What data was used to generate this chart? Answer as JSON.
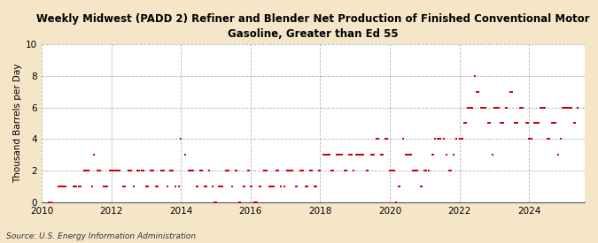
{
  "title": "Weekly Midwest (PADD 2) Refiner and Blender Net Production of Finished Conventional Motor\nGasoline, Greater than Ed 55",
  "ylabel": "Thousand Barrels per Day",
  "source": "Source: U.S. Energy Information Administration",
  "background_color": "#f5e6c8",
  "plot_bg_color": "#ffffff",
  "dot_color": "#cc0000",
  "ylim": [
    0,
    10
  ],
  "yticks": [
    0,
    2,
    4,
    6,
    8,
    10
  ],
  "xlim": [
    2010.0,
    2025.6
  ],
  "xticks": [
    2010,
    2012,
    2014,
    2016,
    2018,
    2020,
    2022,
    2024
  ],
  "data_points": [
    [
      2010.19,
      0
    ],
    [
      2010.27,
      0
    ],
    [
      2010.48,
      1
    ],
    [
      2010.52,
      1
    ],
    [
      2010.56,
      1
    ],
    [
      2010.6,
      1
    ],
    [
      2010.65,
      1
    ],
    [
      2010.69,
      1
    ],
    [
      2010.9,
      1
    ],
    [
      2010.94,
      1
    ],
    [
      2011.0,
      1
    ],
    [
      2011.06,
      1
    ],
    [
      2011.12,
      1
    ],
    [
      2011.23,
      2
    ],
    [
      2011.27,
      2
    ],
    [
      2011.31,
      2
    ],
    [
      2011.35,
      2
    ],
    [
      2011.44,
      1
    ],
    [
      2011.5,
      3
    ],
    [
      2011.6,
      2
    ],
    [
      2011.64,
      2
    ],
    [
      2011.68,
      2
    ],
    [
      2011.79,
      1
    ],
    [
      2011.83,
      1
    ],
    [
      2011.87,
      1
    ],
    [
      2011.95,
      2
    ],
    [
      2011.99,
      2
    ],
    [
      2012.0,
      2
    ],
    [
      2012.04,
      2
    ],
    [
      2012.08,
      2
    ],
    [
      2012.12,
      2
    ],
    [
      2012.16,
      2
    ],
    [
      2012.2,
      2
    ],
    [
      2012.24,
      2
    ],
    [
      2012.35,
      1
    ],
    [
      2012.39,
      1
    ],
    [
      2012.48,
      2
    ],
    [
      2012.52,
      2
    ],
    [
      2012.56,
      2
    ],
    [
      2012.65,
      1
    ],
    [
      2012.75,
      2
    ],
    [
      2012.79,
      2
    ],
    [
      2012.88,
      2
    ],
    [
      2012.92,
      2
    ],
    [
      2013.0,
      1
    ],
    [
      2013.04,
      1
    ],
    [
      2013.12,
      2
    ],
    [
      2013.16,
      2
    ],
    [
      2013.2,
      2
    ],
    [
      2013.29,
      1
    ],
    [
      2013.33,
      1
    ],
    [
      2013.44,
      2
    ],
    [
      2013.48,
      2
    ],
    [
      2013.52,
      2
    ],
    [
      2013.6,
      1
    ],
    [
      2013.69,
      2
    ],
    [
      2013.73,
      2
    ],
    [
      2013.77,
      2
    ],
    [
      2013.85,
      1
    ],
    [
      2013.94,
      1
    ],
    [
      2014.0,
      4
    ],
    [
      2014.12,
      3
    ],
    [
      2014.23,
      2
    ],
    [
      2014.27,
      2
    ],
    [
      2014.31,
      2
    ],
    [
      2014.35,
      2
    ],
    [
      2014.44,
      1
    ],
    [
      2014.48,
      1
    ],
    [
      2014.56,
      2
    ],
    [
      2014.6,
      2
    ],
    [
      2014.69,
      1
    ],
    [
      2014.73,
      1
    ],
    [
      2014.81,
      2
    ],
    [
      2014.9,
      1
    ],
    [
      2014.96,
      0
    ],
    [
      2015.0,
      0
    ],
    [
      2015.08,
      1
    ],
    [
      2015.12,
      1
    ],
    [
      2015.16,
      1
    ],
    [
      2015.2,
      1
    ],
    [
      2015.29,
      2
    ],
    [
      2015.33,
      2
    ],
    [
      2015.37,
      2
    ],
    [
      2015.46,
      1
    ],
    [
      2015.56,
      2
    ],
    [
      2015.6,
      2
    ],
    [
      2015.67,
      0
    ],
    [
      2015.71,
      0
    ],
    [
      2015.79,
      1
    ],
    [
      2015.83,
      1
    ],
    [
      2015.92,
      2
    ],
    [
      2015.96,
      2
    ],
    [
      2016.0,
      1
    ],
    [
      2016.04,
      1
    ],
    [
      2016.1,
      0
    ],
    [
      2016.13,
      0
    ],
    [
      2016.17,
      0
    ],
    [
      2016.25,
      1
    ],
    [
      2016.29,
      1
    ],
    [
      2016.38,
      2
    ],
    [
      2016.42,
      2
    ],
    [
      2016.46,
      2
    ],
    [
      2016.54,
      1
    ],
    [
      2016.58,
      1
    ],
    [
      2016.62,
      1
    ],
    [
      2016.67,
      1
    ],
    [
      2016.75,
      2
    ],
    [
      2016.79,
      2
    ],
    [
      2016.88,
      1
    ],
    [
      2016.96,
      1
    ],
    [
      2017.04,
      2
    ],
    [
      2017.08,
      2
    ],
    [
      2017.12,
      2
    ],
    [
      2017.16,
      2
    ],
    [
      2017.2,
      2
    ],
    [
      2017.29,
      1
    ],
    [
      2017.33,
      1
    ],
    [
      2017.42,
      2
    ],
    [
      2017.46,
      2
    ],
    [
      2017.5,
      2
    ],
    [
      2017.58,
      1
    ],
    [
      2017.62,
      1
    ],
    [
      2017.71,
      2
    ],
    [
      2017.75,
      2
    ],
    [
      2017.83,
      1
    ],
    [
      2017.88,
      1
    ],
    [
      2017.96,
      2
    ],
    [
      2018.0,
      2
    ],
    [
      2018.08,
      3
    ],
    [
      2018.12,
      3
    ],
    [
      2018.16,
      3
    ],
    [
      2018.2,
      3
    ],
    [
      2018.24,
      3
    ],
    [
      2018.28,
      3
    ],
    [
      2018.33,
      2
    ],
    [
      2018.37,
      2
    ],
    [
      2018.46,
      3
    ],
    [
      2018.5,
      3
    ],
    [
      2018.54,
      3
    ],
    [
      2018.58,
      3
    ],
    [
      2018.62,
      3
    ],
    [
      2018.71,
      2
    ],
    [
      2018.75,
      2
    ],
    [
      2018.83,
      3
    ],
    [
      2018.87,
      3
    ],
    [
      2018.91,
      3
    ],
    [
      2018.96,
      2
    ],
    [
      2019.04,
      3
    ],
    [
      2019.08,
      3
    ],
    [
      2019.12,
      3
    ],
    [
      2019.16,
      3
    ],
    [
      2019.2,
      3
    ],
    [
      2019.24,
      3
    ],
    [
      2019.33,
      2
    ],
    [
      2019.37,
      2
    ],
    [
      2019.46,
      3
    ],
    [
      2019.5,
      3
    ],
    [
      2019.54,
      3
    ],
    [
      2019.62,
      4
    ],
    [
      2019.66,
      4
    ],
    [
      2019.75,
      3
    ],
    [
      2019.79,
      3
    ],
    [
      2019.88,
      4
    ],
    [
      2019.92,
      4
    ],
    [
      2020.0,
      2
    ],
    [
      2020.04,
      2
    ],
    [
      2020.08,
      2
    ],
    [
      2020.12,
      2
    ],
    [
      2020.17,
      0
    ],
    [
      2020.25,
      1
    ],
    [
      2020.29,
      1
    ],
    [
      2020.38,
      4
    ],
    [
      2020.46,
      3
    ],
    [
      2020.5,
      3
    ],
    [
      2020.54,
      3
    ],
    [
      2020.58,
      3
    ],
    [
      2020.62,
      3
    ],
    [
      2020.67,
      2
    ],
    [
      2020.71,
      2
    ],
    [
      2020.75,
      2
    ],
    [
      2020.79,
      2
    ],
    [
      2020.88,
      1
    ],
    [
      2020.92,
      1
    ],
    [
      2021.0,
      2
    ],
    [
      2021.04,
      2
    ],
    [
      2021.12,
      2
    ],
    [
      2021.21,
      3
    ],
    [
      2021.25,
      3
    ],
    [
      2021.29,
      4
    ],
    [
      2021.38,
      4
    ],
    [
      2021.42,
      4
    ],
    [
      2021.46,
      4
    ],
    [
      2021.54,
      4
    ],
    [
      2021.62,
      3
    ],
    [
      2021.71,
      2
    ],
    [
      2021.75,
      2
    ],
    [
      2021.83,
      3
    ],
    [
      2021.92,
      4
    ],
    [
      2022.0,
      4
    ],
    [
      2022.04,
      4
    ],
    [
      2022.08,
      4
    ],
    [
      2022.15,
      5
    ],
    [
      2022.19,
      5
    ],
    [
      2022.25,
      6
    ],
    [
      2022.29,
      6
    ],
    [
      2022.33,
      6
    ],
    [
      2022.37,
      6
    ],
    [
      2022.44,
      8
    ],
    [
      2022.5,
      7
    ],
    [
      2022.54,
      7
    ],
    [
      2022.62,
      6
    ],
    [
      2022.67,
      6
    ],
    [
      2022.71,
      6
    ],
    [
      2022.75,
      6
    ],
    [
      2022.83,
      5
    ],
    [
      2022.87,
      5
    ],
    [
      2022.96,
      3
    ],
    [
      2023.0,
      6
    ],
    [
      2023.04,
      6
    ],
    [
      2023.08,
      6
    ],
    [
      2023.12,
      6
    ],
    [
      2023.17,
      5
    ],
    [
      2023.21,
      5
    ],
    [
      2023.25,
      5
    ],
    [
      2023.33,
      6
    ],
    [
      2023.37,
      6
    ],
    [
      2023.46,
      7
    ],
    [
      2023.5,
      7
    ],
    [
      2023.58,
      5
    ],
    [
      2023.62,
      5
    ],
    [
      2023.67,
      5
    ],
    [
      2023.75,
      6
    ],
    [
      2023.79,
      6
    ],
    [
      2023.83,
      6
    ],
    [
      2023.92,
      5
    ],
    [
      2023.96,
      5
    ],
    [
      2024.0,
      4
    ],
    [
      2024.04,
      4
    ],
    [
      2024.08,
      4
    ],
    [
      2024.15,
      5
    ],
    [
      2024.19,
      5
    ],
    [
      2024.23,
      5
    ],
    [
      2024.27,
      5
    ],
    [
      2024.33,
      6
    ],
    [
      2024.37,
      6
    ],
    [
      2024.42,
      6
    ],
    [
      2024.46,
      6
    ],
    [
      2024.54,
      4
    ],
    [
      2024.58,
      4
    ],
    [
      2024.67,
      5
    ],
    [
      2024.71,
      5
    ],
    [
      2024.75,
      5
    ],
    [
      2024.83,
      3
    ],
    [
      2024.92,
      4
    ],
    [
      2024.96,
      6
    ],
    [
      2025.0,
      6
    ],
    [
      2025.04,
      6
    ],
    [
      2025.1,
      6
    ],
    [
      2025.14,
      6
    ],
    [
      2025.18,
      6
    ],
    [
      2025.22,
      6
    ],
    [
      2025.29,
      5
    ],
    [
      2025.33,
      5
    ],
    [
      2025.4,
      6
    ]
  ]
}
